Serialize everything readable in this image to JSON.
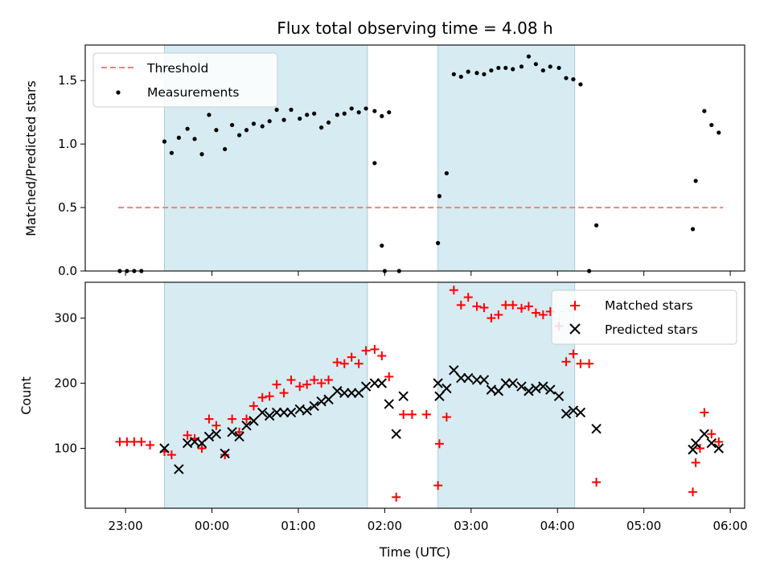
{
  "chart_data": [
    {
      "type": "scatter",
      "title": "Flux total observing time = 4.08 h",
      "xlabel": "",
      "ylabel": "Matched/Predicted stars",
      "ylim": [
        0,
        1.78
      ],
      "yticks": [
        0.0,
        0.5,
        1.0,
        1.5
      ],
      "ytick_labels": [
        "0.0",
        "0.5",
        "1.0",
        "1.5"
      ],
      "xlim": [
        "22:32",
        "06:10"
      ],
      "xticks": [
        "23:00",
        "00:00",
        "01:00",
        "02:00",
        "03:00",
        "04:00",
        "05:00",
        "06:00"
      ],
      "shaded_intervals": [
        [
          "23:27",
          "01:48"
        ],
        [
          "02:37",
          "04:12"
        ]
      ],
      "legend_position": "upper left",
      "threshold": {
        "name": "Threshold",
        "value": 0.5,
        "x_range": [
          "22:55",
          "05:55"
        ],
        "color": "#f08080",
        "style": "dashed"
      },
      "series": [
        {
          "name": "Measurements",
          "color": "#000000",
          "marker": "dot",
          "points": [
            [
              "22:56",
              0.0
            ],
            [
              "23:01",
              0.0
            ],
            [
              "23:06",
              0.0
            ],
            [
              "23:11",
              0.0
            ],
            [
              "23:27",
              1.02
            ],
            [
              "23:32",
              0.93
            ],
            [
              "23:37",
              1.05
            ],
            [
              "23:43",
              1.12
            ],
            [
              "23:48",
              1.04
            ],
            [
              "23:53",
              0.92
            ],
            [
              "23:58",
              1.23
            ],
            [
              "00:03",
              1.11
            ],
            [
              "00:09",
              0.96
            ],
            [
              "00:14",
              1.15
            ],
            [
              "00:19",
              1.07
            ],
            [
              "00:24",
              1.11
            ],
            [
              "00:29",
              1.16
            ],
            [
              "00:35",
              1.14
            ],
            [
              "00:40",
              1.18
            ],
            [
              "00:45",
              1.27
            ],
            [
              "00:50",
              1.19
            ],
            [
              "00:55",
              1.27
            ],
            [
              "01:01",
              1.2
            ],
            [
              "01:06",
              1.23
            ],
            [
              "01:11",
              1.24
            ],
            [
              "01:16",
              1.13
            ],
            [
              "01:21",
              1.17
            ],
            [
              "01:27",
              1.23
            ],
            [
              "01:32",
              1.24
            ],
            [
              "01:37",
              1.28
            ],
            [
              "01:42",
              1.25
            ],
            [
              "01:47",
              1.28
            ],
            [
              "01:53",
              1.26
            ],
            [
              "01:58",
              1.22
            ],
            [
              "02:03",
              1.25
            ],
            [
              "01:58",
              0.2
            ],
            [
              "01:53",
              0.85
            ],
            [
              "02:00",
              0.0
            ],
            [
              "02:10",
              0.0
            ],
            [
              "02:37",
              0.22
            ],
            [
              "02:38",
              0.59
            ],
            [
              "02:43",
              0.77
            ],
            [
              "02:48",
              1.55
            ],
            [
              "02:53",
              1.53
            ],
            [
              "02:58",
              1.57
            ],
            [
              "03:04",
              1.56
            ],
            [
              "03:09",
              1.55
            ],
            [
              "03:14",
              1.58
            ],
            [
              "03:19",
              1.6
            ],
            [
              "03:24",
              1.6
            ],
            [
              "03:29",
              1.59
            ],
            [
              "03:35",
              1.61
            ],
            [
              "03:40",
              1.69
            ],
            [
              "03:45",
              1.63
            ],
            [
              "03:50",
              1.58
            ],
            [
              "03:55",
              1.61
            ],
            [
              "04:01",
              1.6
            ],
            [
              "04:06",
              1.52
            ],
            [
              "04:11",
              1.51
            ],
            [
              "04:16",
              1.47
            ],
            [
              "04:22",
              0.0
            ],
            [
              "04:27",
              0.36
            ],
            [
              "05:34",
              0.33
            ],
            [
              "05:36",
              0.71
            ],
            [
              "05:42",
              1.26
            ],
            [
              "05:47",
              1.15
            ],
            [
              "05:52",
              1.09
            ]
          ]
        }
      ]
    },
    {
      "type": "scatter",
      "title": "",
      "xlabel": "Time (UTC)",
      "ylabel": "Count",
      "ylim": [
        8,
        355
      ],
      "yticks": [
        100,
        200,
        300
      ],
      "ytick_labels": [
        "100",
        "200",
        "300"
      ],
      "xlim": [
        "22:32",
        "06:10"
      ],
      "xticks": [
        "23:00",
        "00:00",
        "01:00",
        "02:00",
        "03:00",
        "04:00",
        "05:00",
        "06:00"
      ],
      "xtick_labels": [
        "23:00",
        "00:00",
        "01:00",
        "02:00",
        "03:00",
        "04:00",
        "05:00",
        "06:00"
      ],
      "shaded_intervals": [
        [
          "23:27",
          "01:48"
        ],
        [
          "02:37",
          "04:12"
        ]
      ],
      "legend_position": "upper right",
      "series": [
        {
          "name": "Matched stars",
          "color": "#ff0000",
          "marker": "plus",
          "points": [
            [
              "22:56",
              110
            ],
            [
              "23:01",
              110
            ],
            [
              "23:06",
              110
            ],
            [
              "23:11",
              110
            ],
            [
              "23:17",
              105
            ],
            [
              "23:27",
              95
            ],
            [
              "23:32",
              90
            ],
            [
              "23:43",
              120
            ],
            [
              "23:48",
              115
            ],
            [
              "23:53",
              100
            ],
            [
              "23:58",
              145
            ],
            [
              "00:03",
              135
            ],
            [
              "00:09",
              90
            ],
            [
              "00:14",
              145
            ],
            [
              "00:19",
              125
            ],
            [
              "00:24",
              145
            ],
            [
              "00:29",
              165
            ],
            [
              "00:35",
              178
            ],
            [
              "00:40",
              180
            ],
            [
              "00:45",
              198
            ],
            [
              "00:50",
              185
            ],
            [
              "00:55",
              205
            ],
            [
              "01:01",
              195
            ],
            [
              "01:06",
              198
            ],
            [
              "01:11",
              205
            ],
            [
              "01:16",
              200
            ],
            [
              "01:21",
              205
            ],
            [
              "01:27",
              232
            ],
            [
              "01:32",
              230
            ],
            [
              "01:37",
              240
            ],
            [
              "01:42",
              230
            ],
            [
              "01:47",
              250
            ],
            [
              "01:53",
              252
            ],
            [
              "01:58",
              242
            ],
            [
              "02:03",
              210
            ],
            [
              "02:08",
              25
            ],
            [
              "02:13",
              152
            ],
            [
              "02:19",
              152
            ],
            [
              "02:29",
              152
            ],
            [
              "02:37",
              43
            ],
            [
              "02:38",
              107
            ],
            [
              "02:43",
              148
            ],
            [
              "02:48",
              343
            ],
            [
              "02:53",
              320
            ],
            [
              "02:58",
              332
            ],
            [
              "03:04",
              318
            ],
            [
              "03:09",
              316
            ],
            [
              "03:14",
              300
            ],
            [
              "03:19",
              305
            ],
            [
              "03:24",
              320
            ],
            [
              "03:29",
              320
            ],
            [
              "03:35",
              315
            ],
            [
              "03:40",
              318
            ],
            [
              "03:45",
              308
            ],
            [
              "03:50",
              305
            ],
            [
              "03:55",
              310
            ],
            [
              "04:01",
              288
            ],
            [
              "04:06",
              233
            ],
            [
              "04:11",
              245
            ],
            [
              "04:16",
              230
            ],
            [
              "04:22",
              230
            ],
            [
              "04:27",
              48
            ],
            [
              "05:34",
              33
            ],
            [
              "05:36",
              78
            ],
            [
              "05:39",
              100
            ],
            [
              "05:42",
              155
            ],
            [
              "05:47",
              122
            ],
            [
              "05:52",
              110
            ]
          ]
        },
        {
          "name": "Predicted stars",
          "color": "#000000",
          "marker": "x",
          "points": [
            [
              "23:27",
              100
            ],
            [
              "23:37",
              68
            ],
            [
              "23:43",
              108
            ],
            [
              "23:48",
              110
            ],
            [
              "23:53",
              108
            ],
            [
              "23:58",
              118
            ],
            [
              "00:03",
              122
            ],
            [
              "00:09",
              92
            ],
            [
              "00:14",
              125
            ],
            [
              "00:19",
              118
            ],
            [
              "00:24",
              135
            ],
            [
              "00:29",
              142
            ],
            [
              "00:35",
              155
            ],
            [
              "00:40",
              150
            ],
            [
              "00:45",
              155
            ],
            [
              "00:50",
              155
            ],
            [
              "00:55",
              155
            ],
            [
              "01:01",
              160
            ],
            [
              "01:06",
              158
            ],
            [
              "01:11",
              165
            ],
            [
              "01:16",
              172
            ],
            [
              "01:21",
              175
            ],
            [
              "01:27",
              188
            ],
            [
              "01:32",
              185
            ],
            [
              "01:37",
              185
            ],
            [
              "01:42",
              185
            ],
            [
              "01:47",
              195
            ],
            [
              "01:53",
              200
            ],
            [
              "01:58",
              200
            ],
            [
              "02:03",
              168
            ],
            [
              "02:08",
              122
            ],
            [
              "02:13",
              180
            ],
            [
              "02:37",
              200
            ],
            [
              "02:38",
              180
            ],
            [
              "02:43",
              192
            ],
            [
              "02:48",
              220
            ],
            [
              "02:53",
              208
            ],
            [
              "02:58",
              208
            ],
            [
              "03:04",
              205
            ],
            [
              "03:09",
              205
            ],
            [
              "03:14",
              190
            ],
            [
              "03:19",
              188
            ],
            [
              "03:24",
              200
            ],
            [
              "03:29",
              200
            ],
            [
              "03:35",
              195
            ],
            [
              "03:40",
              188
            ],
            [
              "03:45",
              192
            ],
            [
              "03:50",
              195
            ],
            [
              "03:55",
              190
            ],
            [
              "04:01",
              180
            ],
            [
              "04:06",
              153
            ],
            [
              "04:11",
              158
            ],
            [
              "04:16",
              155
            ],
            [
              "04:27",
              130
            ],
            [
              "05:34",
              98
            ],
            [
              "05:36",
              108
            ],
            [
              "05:42",
              122
            ],
            [
              "05:47",
              108
            ],
            [
              "05:52",
              100
            ]
          ]
        }
      ]
    }
  ]
}
